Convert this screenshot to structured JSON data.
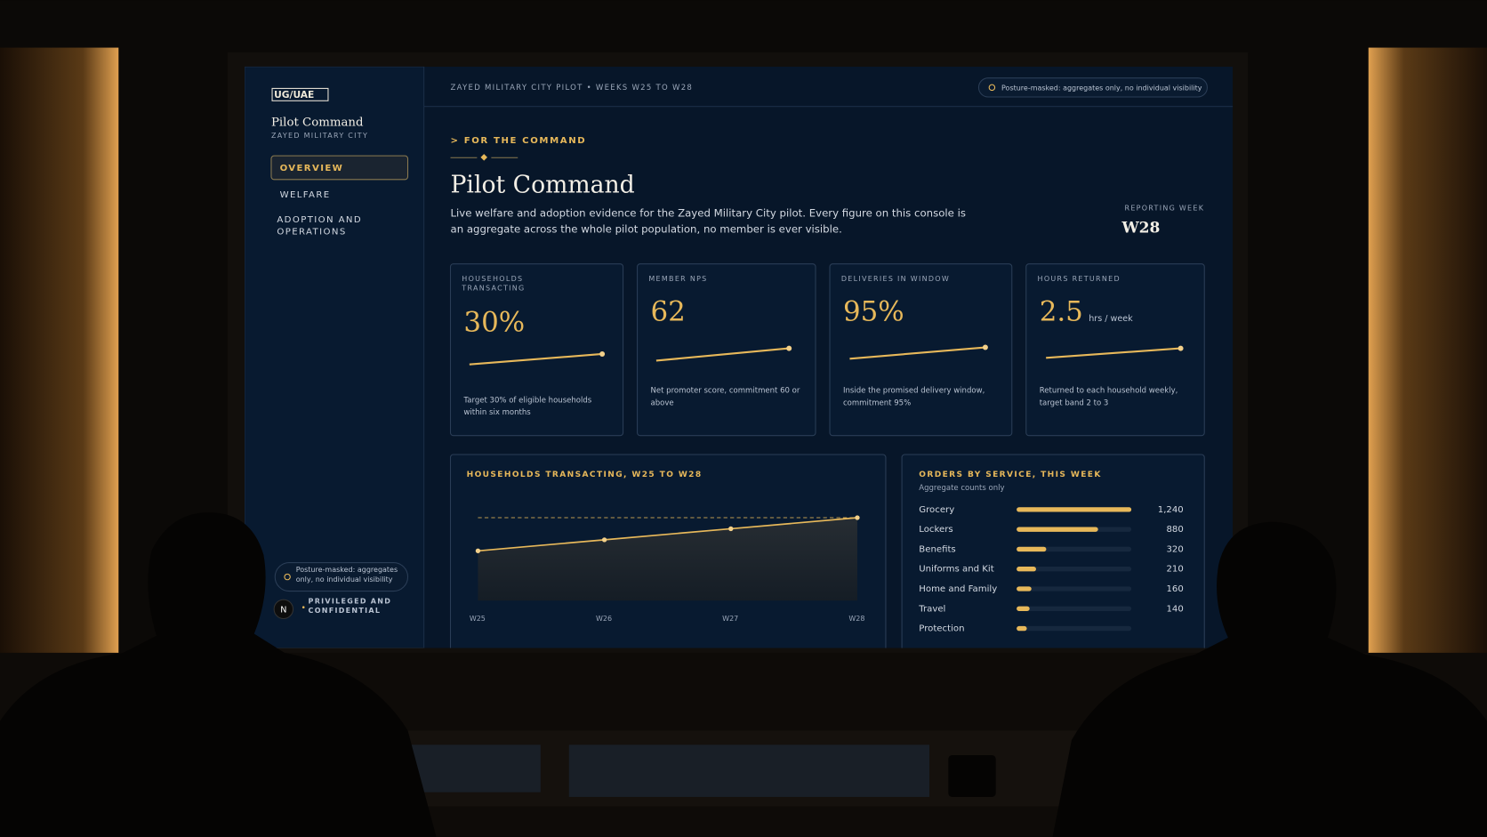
{
  "sidebar": {
    "logo": "UG/UAE",
    "title": "Pilot Command",
    "subtitle": "ZAYED MILITARY CITY",
    "nav": [
      "OVERVIEW",
      "WELFARE",
      "ADOPTION AND OPERATIONS"
    ],
    "badge": "Posture-masked: aggregates only, no individual visibility",
    "avatar": "N",
    "footer": "PRIVILEGED AND CONFIDENTIAL"
  },
  "header": {
    "context": "ZAYED MILITARY CITY PILOT • WEEKS W25 TO W28",
    "badge": "Posture-masked: aggregates only, no individual visibility",
    "eyebrow": "> FOR THE COMMAND",
    "title": "Pilot Command",
    "description": "Live welfare and adoption evidence for the Zayed Military City pilot. Every figure on this console is an aggregate across the whole pilot population, no member is ever visible.",
    "week_label": "REPORTING WEEK",
    "week": "W28"
  },
  "cards": [
    {
      "label": "HOUSEHOLDS TRANSACTING",
      "value": "30%",
      "note": "Target 30% of eligible households within six months"
    },
    {
      "label": "MEMBER NPS",
      "value": "62",
      "note": "Net promoter score, commitment 60 or above"
    },
    {
      "label": "DELIVERIES IN WINDOW",
      "value": "95%",
      "note": "Inside the promised delivery window, commitment 95%"
    },
    {
      "label": "HOURS RETURNED",
      "value": "2.5",
      "unit": "hrs / week",
      "note": "Returned to each household weekly, target band 2 to 3"
    }
  ],
  "trend": {
    "title": "HOUSEHOLDS TRANSACTING, W25 TO W28",
    "categories": [
      "W25",
      "W26",
      "W27",
      "W28"
    ],
    "values": [
      18,
      22,
      26,
      30
    ],
    "target": 30,
    "ylim": [
      0,
      35
    ]
  },
  "orders": {
    "title": "ORDERS BY SERVICE, THIS WEEK",
    "subtitle": "Aggregate counts only",
    "categories": [
      "Grocery",
      "Lockers",
      "Benefits",
      "Uniforms and Kit",
      "Home and Family",
      "Travel",
      "Protection"
    ],
    "values": [
      1240,
      880,
      320,
      210,
      160,
      140,
      110
    ],
    "value_labels": [
      "1,240",
      "880",
      "320",
      "210",
      "160",
      "140",
      null
    ],
    "xlim": [
      0,
      1240
    ],
    "color": "#e7b85a"
  }
}
